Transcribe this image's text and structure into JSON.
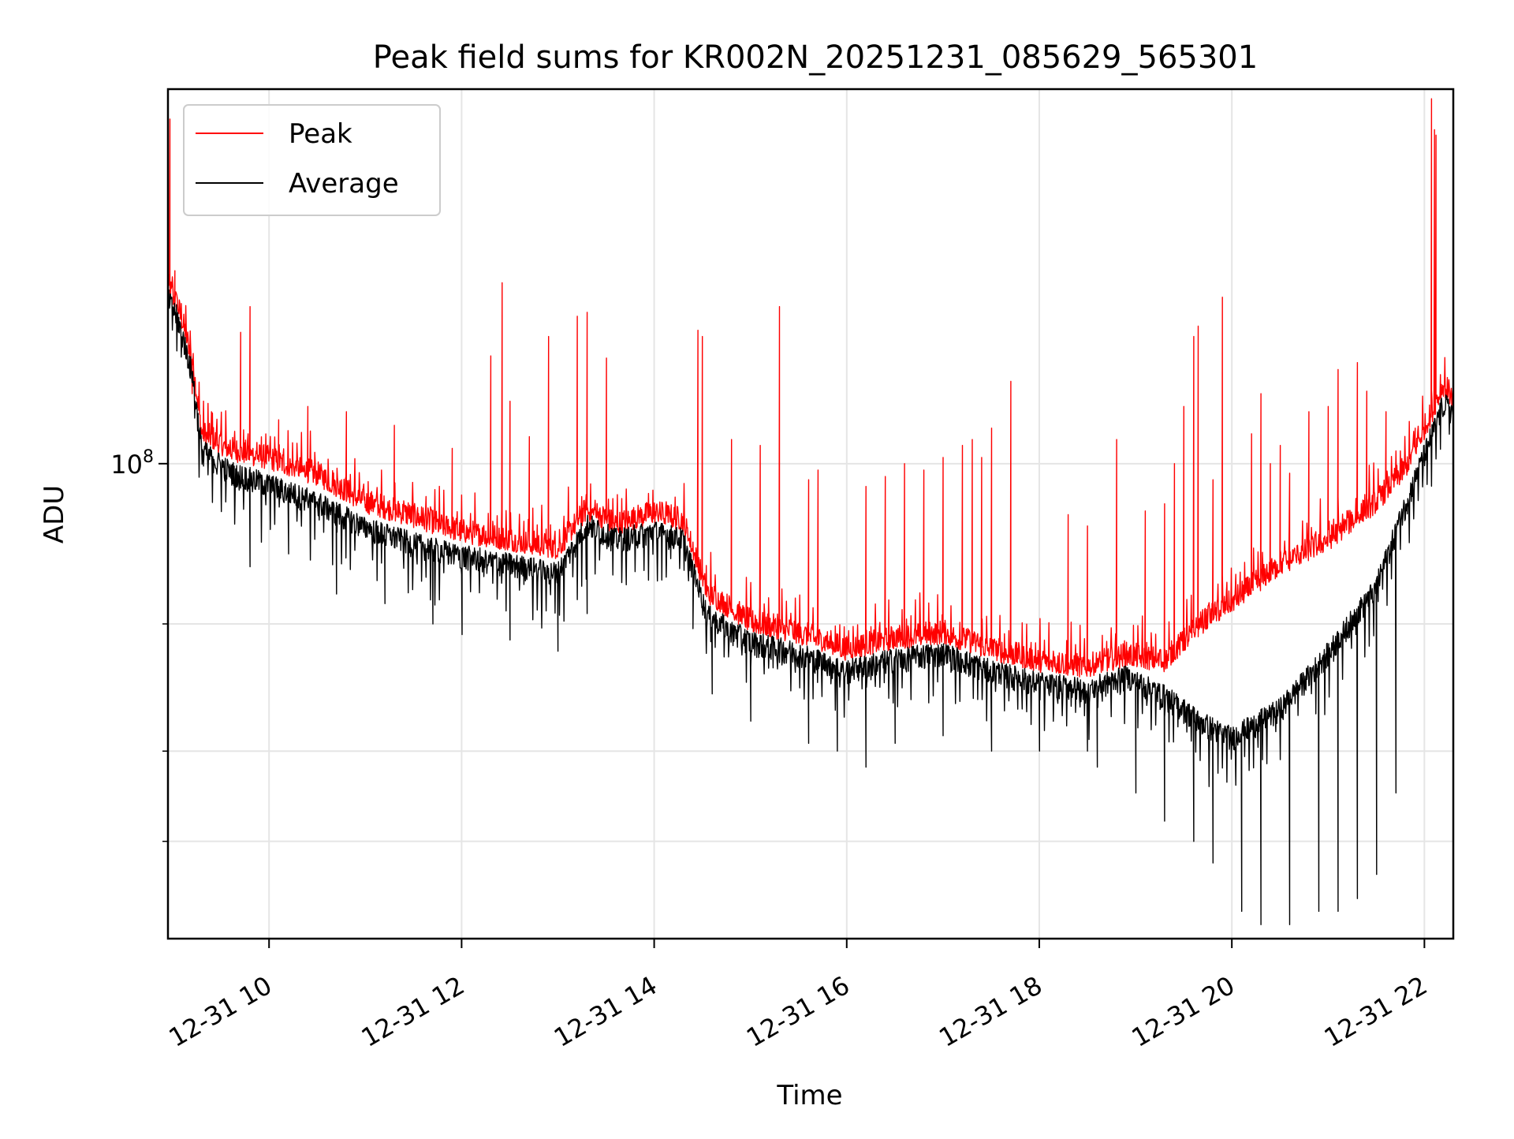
{
  "chart_data": {
    "type": "line",
    "title": "Peak field sums for KR002N_20251231_085629_565301",
    "xlabel": "Time",
    "ylabel": "ADU",
    "x_unit": "hours (since 2025-12-31 00:00)",
    "xlim": [
      8.95,
      22.3
    ],
    "ylim": [
      22000000,
      330000000
    ],
    "yscale": "log",
    "grid": true,
    "legend_position": "top-left",
    "x_ticks": [
      {
        "value": 10,
        "label": "12-31 10"
      },
      {
        "value": 12,
        "label": "12-31 12"
      },
      {
        "value": 14,
        "label": "12-31 14"
      },
      {
        "value": 16,
        "label": "12-31 16"
      },
      {
        "value": 18,
        "label": "12-31 18"
      },
      {
        "value": 20,
        "label": "12-31 20"
      },
      {
        "value": 22,
        "label": "12-31 22"
      }
    ],
    "y_major_ticks": [
      {
        "value": 100000000,
        "base": "10",
        "exponent": "8"
      }
    ],
    "y_minor_ticks": [
      30000000,
      40000000,
      60000000
    ],
    "series": [
      {
        "name": "Peak",
        "color": "#ff0000",
        "baseline": [
          [
            8.95,
            175000000
          ],
          [
            9.05,
            165000000
          ],
          [
            9.2,
            140000000
          ],
          [
            9.3,
            110000000
          ],
          [
            9.6,
            104000000
          ],
          [
            10.0,
            101000000
          ],
          [
            10.5,
            96000000
          ],
          [
            11.0,
            88000000
          ],
          [
            11.5,
            84000000
          ],
          [
            12.0,
            80000000
          ],
          [
            12.5,
            78000000
          ],
          [
            13.0,
            76000000
          ],
          [
            13.3,
            86000000
          ],
          [
            13.6,
            82000000
          ],
          [
            14.0,
            85000000
          ],
          [
            14.3,
            83000000
          ],
          [
            14.55,
            66000000
          ],
          [
            15.0,
            60000000
          ],
          [
            15.5,
            58000000
          ],
          [
            16.0,
            55000000
          ],
          [
            16.5,
            57000000
          ],
          [
            17.0,
            58000000
          ],
          [
            17.5,
            55000000
          ],
          [
            18.0,
            53000000
          ],
          [
            18.5,
            52000000
          ],
          [
            18.9,
            54000000
          ],
          [
            19.3,
            53000000
          ],
          [
            19.7,
            60000000
          ],
          [
            20.0,
            64000000
          ],
          [
            20.5,
            72000000
          ],
          [
            21.0,
            78000000
          ],
          [
            21.5,
            88000000
          ],
          [
            21.8,
            98000000
          ],
          [
            22.05,
            115000000
          ],
          [
            22.2,
            128000000
          ],
          [
            22.3,
            122000000
          ]
        ],
        "spikes": [
          [
            8.97,
            300000000
          ],
          [
            9.02,
            185000000
          ],
          [
            9.2,
            125000000
          ],
          [
            9.4,
            118000000
          ],
          [
            9.7,
            152000000
          ],
          [
            9.8,
            165000000
          ],
          [
            10.1,
            115000000
          ],
          [
            10.4,
            120000000
          ],
          [
            10.8,
            118000000
          ],
          [
            11.3,
            113000000
          ],
          [
            11.9,
            105000000
          ],
          [
            12.3,
            141000000
          ],
          [
            12.42,
            178000000
          ],
          [
            12.5,
            122000000
          ],
          [
            12.7,
            109000000
          ],
          [
            12.9,
            150000000
          ],
          [
            13.2,
            160000000
          ],
          [
            13.3,
            162000000
          ],
          [
            13.5,
            140000000
          ],
          [
            14.45,
            153000000
          ],
          [
            14.5,
            150000000
          ],
          [
            14.8,
            108000000
          ],
          [
            15.1,
            106000000
          ],
          [
            15.3,
            165000000
          ],
          [
            15.6,
            95000000
          ],
          [
            15.7,
            98000000
          ],
          [
            16.2,
            93000000
          ],
          [
            16.4,
            96000000
          ],
          [
            16.6,
            100000000
          ],
          [
            16.8,
            98000000
          ],
          [
            17.0,
            102000000
          ],
          [
            17.2,
            106000000
          ],
          [
            17.3,
            108000000
          ],
          [
            17.4,
            102000000
          ],
          [
            17.5,
            112000000
          ],
          [
            17.7,
            130000000
          ],
          [
            18.3,
            85000000
          ],
          [
            18.5,
            82000000
          ],
          [
            18.8,
            108000000
          ],
          [
            19.1,
            86000000
          ],
          [
            19.3,
            88000000
          ],
          [
            19.4,
            100000000
          ],
          [
            19.5,
            120000000
          ],
          [
            19.6,
            150000000
          ],
          [
            19.65,
            155000000
          ],
          [
            19.8,
            95000000
          ],
          [
            19.9,
            170000000
          ],
          [
            20.2,
            110000000
          ],
          [
            20.3,
            125000000
          ],
          [
            20.4,
            100000000
          ],
          [
            20.5,
            106000000
          ],
          [
            20.6,
            97000000
          ],
          [
            20.8,
            118000000
          ],
          [
            21.0,
            120000000
          ],
          [
            21.1,
            135000000
          ],
          [
            21.3,
            138000000
          ],
          [
            21.4,
            126000000
          ],
          [
            21.6,
            118000000
          ],
          [
            21.9,
            112000000
          ],
          [
            22.07,
            320000000
          ],
          [
            22.1,
            290000000
          ],
          [
            22.12,
            285000000
          ]
        ]
      },
      {
        "name": "Average",
        "color": "#000000",
        "baseline": [
          [
            8.95,
            170000000
          ],
          [
            9.05,
            160000000
          ],
          [
            9.2,
            135000000
          ],
          [
            9.3,
            105000000
          ],
          [
            9.6,
            98000000
          ],
          [
            10.0,
            94000000
          ],
          [
            10.5,
            89000000
          ],
          [
            11.0,
            82000000
          ],
          [
            11.5,
            78000000
          ],
          [
            12.0,
            75000000
          ],
          [
            12.5,
            73000000
          ],
          [
            13.0,
            71000000
          ],
          [
            13.3,
            83000000
          ],
          [
            13.6,
            79000000
          ],
          [
            14.0,
            81000000
          ],
          [
            14.3,
            79000000
          ],
          [
            14.55,
            62000000
          ],
          [
            15.0,
            57000000
          ],
          [
            15.5,
            55000000
          ],
          [
            16.0,
            52000000
          ],
          [
            16.5,
            54000000
          ],
          [
            17.0,
            55000000
          ],
          [
            17.5,
            52000000
          ],
          [
            18.0,
            50000000
          ],
          [
            18.5,
            49000000
          ],
          [
            18.9,
            51000000
          ],
          [
            19.3,
            48000000
          ],
          [
            19.7,
            44000000
          ],
          [
            20.0,
            42000000
          ],
          [
            20.5,
            46000000
          ],
          [
            21.0,
            55000000
          ],
          [
            21.5,
            68000000
          ],
          [
            21.8,
            88000000
          ],
          [
            22.05,
            108000000
          ],
          [
            22.2,
            122000000
          ],
          [
            22.3,
            118000000
          ]
        ],
        "dips": [
          [
            9.8,
            72000000
          ],
          [
            10.2,
            75000000
          ],
          [
            10.7,
            66000000
          ],
          [
            11.2,
            64000000
          ],
          [
            11.7,
            60000000
          ],
          [
            12.0,
            58000000
          ],
          [
            12.5,
            57000000
          ],
          [
            13.0,
            55000000
          ],
          [
            13.3,
            62000000
          ],
          [
            14.4,
            72000000
          ],
          [
            14.6,
            48000000
          ],
          [
            15.0,
            44000000
          ],
          [
            15.6,
            41000000
          ],
          [
            15.9,
            40000000
          ],
          [
            16.2,
            38000000
          ],
          [
            16.5,
            41000000
          ],
          [
            17.0,
            42000000
          ],
          [
            17.5,
            40000000
          ],
          [
            18.0,
            40000000
          ],
          [
            18.5,
            40000000
          ],
          [
            18.6,
            38000000
          ],
          [
            19.0,
            35000000
          ],
          [
            19.3,
            32000000
          ],
          [
            19.6,
            30000000
          ],
          [
            19.8,
            28000000
          ],
          [
            20.1,
            24000000
          ],
          [
            20.3,
            23000000
          ],
          [
            20.6,
            23000000
          ],
          [
            20.9,
            24000000
          ],
          [
            21.1,
            24000000
          ],
          [
            21.3,
            25000000
          ],
          [
            21.5,
            27000000
          ],
          [
            21.7,
            35000000
          ]
        ]
      }
    ]
  }
}
